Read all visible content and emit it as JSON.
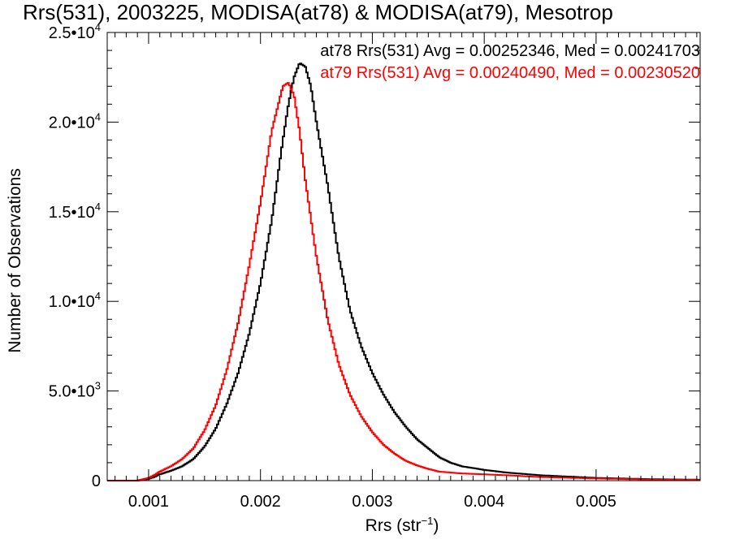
{
  "chart_data": {
    "type": "line",
    "title": "Rrs(531), 2003225, MODISA(at78) & MODISA(at79), Mesotrop",
    "xlabel_main": "Rrs (str",
    "xlabel_exp": "−1",
    "xlabel_end": ")",
    "ylabel": "Number of Observations",
    "xlim": [
      0.00063,
      0.00593
    ],
    "ylim": [
      0,
      25000
    ],
    "x_ticks": [
      {
        "value": 0.001,
        "label": "0.001"
      },
      {
        "value": 0.002,
        "label": "0.002"
      },
      {
        "value": 0.003,
        "label": "0.003"
      },
      {
        "value": 0.004,
        "label": "0.004"
      },
      {
        "value": 0.005,
        "label": "0.005"
      }
    ],
    "y_ticks": [
      {
        "value": 0,
        "mant": "0",
        "exp": ""
      },
      {
        "value": 5000,
        "mant": "5.0•10",
        "exp": "3"
      },
      {
        "value": 10000,
        "mant": "1.0•10",
        "exp": "4"
      },
      {
        "value": 15000,
        "mant": "1.5•10",
        "exp": "4"
      },
      {
        "value": 20000,
        "mant": "2.0•10",
        "exp": "4"
      },
      {
        "value": 25000,
        "mant": "2.5•10",
        "exp": "4"
      }
    ],
    "grid": false,
    "line_style": "step",
    "series": [
      {
        "name": "at78",
        "color": "#000000",
        "x": [
          0.00063,
          0.0009,
          0.001,
          0.00105,
          0.0011,
          0.00115,
          0.0012,
          0.0013,
          0.0014,
          0.0015,
          0.0016,
          0.0017,
          0.0018,
          0.0019,
          0.002,
          0.0021,
          0.0022,
          0.00225,
          0.0023,
          0.00235,
          0.0024,
          0.00245,
          0.0025,
          0.0026,
          0.0027,
          0.0028,
          0.0029,
          0.003,
          0.0031,
          0.0032,
          0.0033,
          0.0034,
          0.0035,
          0.0036,
          0.0037,
          0.0038,
          0.004,
          0.0042,
          0.0045,
          0.005,
          0.0055,
          0.00593
        ],
        "values": [
          0,
          0,
          100,
          200,
          350,
          450,
          550,
          800,
          1200,
          1900,
          2900,
          4300,
          6000,
          8200,
          11000,
          14500,
          19000,
          21000,
          22500,
          23300,
          23100,
          22000,
          20000,
          16500,
          12500,
          9500,
          7500,
          6000,
          4800,
          3800,
          3000,
          2300,
          1800,
          1300,
          1000,
          800,
          600,
          450,
          300,
          150,
          80,
          50
        ]
      },
      {
        "name": "at79",
        "color": "#ff0000",
        "x": [
          0.00063,
          0.0009,
          0.001,
          0.00105,
          0.0011,
          0.00115,
          0.0012,
          0.0013,
          0.0014,
          0.0015,
          0.0016,
          0.0017,
          0.0018,
          0.0019,
          0.002,
          0.0021,
          0.0022,
          0.00225,
          0.0023,
          0.00235,
          0.0024,
          0.0025,
          0.0026,
          0.0027,
          0.0028,
          0.0029,
          0.003,
          0.0031,
          0.0032,
          0.0033,
          0.0034,
          0.0035,
          0.0036,
          0.0038,
          0.004,
          0.0042,
          0.0045,
          0.005,
          0.0055,
          0.00593
        ],
        "values": [
          0,
          0,
          150,
          300,
          500,
          650,
          800,
          1200,
          1800,
          2800,
          4200,
          6200,
          8800,
          12000,
          15500,
          19500,
          22000,
          22200,
          21500,
          19500,
          16800,
          12500,
          9000,
          6500,
          4800,
          3600,
          2700,
          2000,
          1500,
          1100,
          850,
          650,
          500,
          400,
          350,
          300,
          200,
          120,
          60,
          40
        ]
      }
    ],
    "annotations": [
      {
        "text": "at78 Rrs(531) Avg = 0.00252346, Med = 0.00241703",
        "color": "#000000"
      },
      {
        "text": "at79 Rrs(531) Avg = 0.00240490, Med = 0.00230520",
        "color": "#ff0000"
      }
    ]
  }
}
